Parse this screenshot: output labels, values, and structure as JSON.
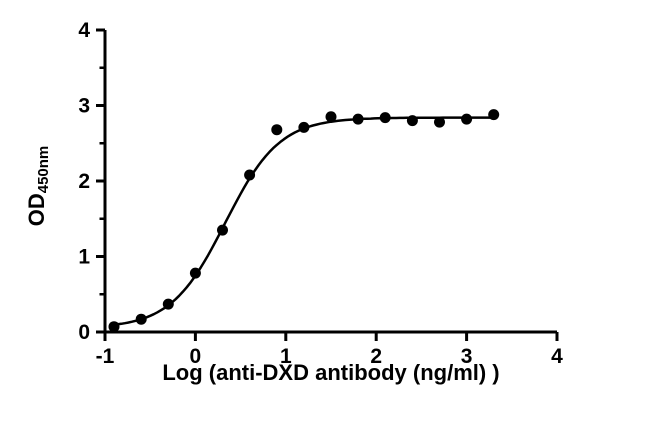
{
  "chart_data": {
    "type": "scatter",
    "title": "",
    "xlabel": "Log (anti-DXD antibody (ng/ml) )",
    "ylabel": "OD",
    "ylabel_sub": "450nm",
    "xlim": [
      -1,
      4
    ],
    "ylim": [
      0,
      4
    ],
    "x_ticks": [
      -1,
      0,
      1,
      2,
      3,
      4
    ],
    "y_ticks": [
      0,
      1,
      2,
      3,
      4
    ],
    "y_minor_step": 0.5,
    "grid": false,
    "legend": "none",
    "points": {
      "x": [
        -0.9,
        -0.6,
        -0.3,
        0.0,
        0.3,
        0.6,
        0.9,
        1.2,
        1.5,
        1.8,
        2.1,
        2.4,
        2.7,
        3.0,
        3.3
      ],
      "y": [
        0.07,
        0.17,
        0.37,
        0.78,
        1.35,
        2.08,
        2.68,
        2.71,
        2.85,
        2.82,
        2.84,
        2.8,
        2.78,
        2.82,
        2.88
      ]
    },
    "fit": {
      "model": "4PL",
      "bottom": 0.05,
      "top": 2.84,
      "logEC50": 0.33,
      "hill": 1.45
    },
    "marker_color": "#000000",
    "line_color": "#000000",
    "background_color": "#ffffff"
  }
}
